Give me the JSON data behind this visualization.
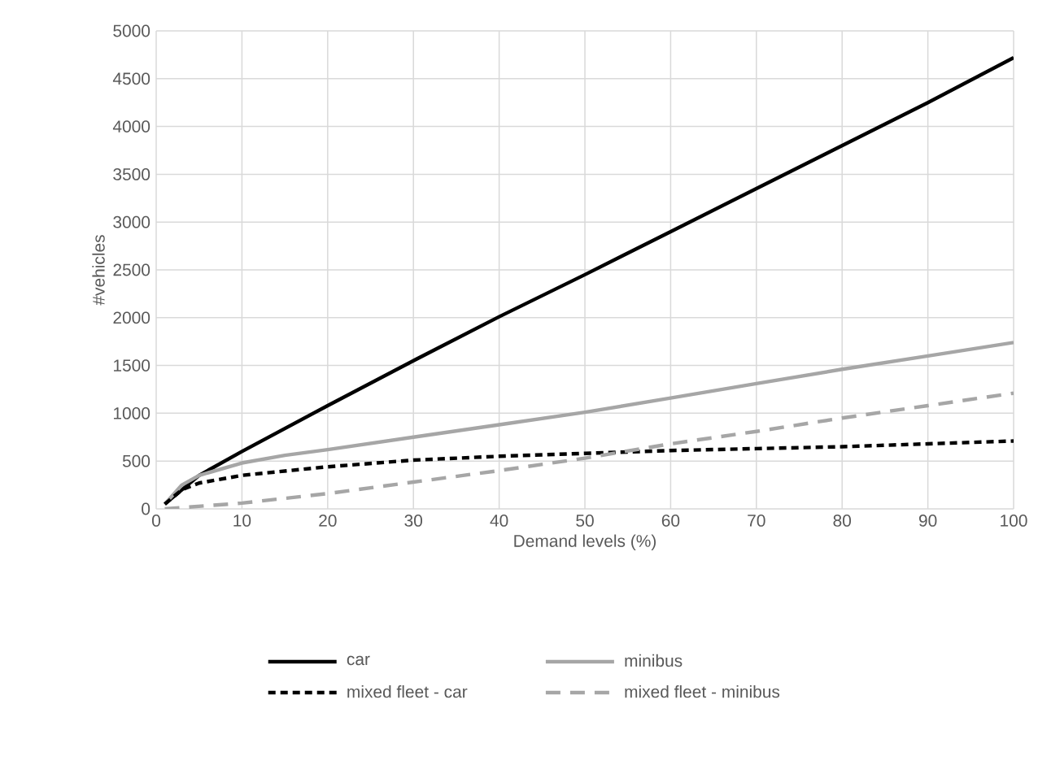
{
  "chart_data": {
    "type": "line",
    "xlabel": "Demand levels (%)",
    "ylabel": "#vehicles",
    "xlim": [
      0,
      100
    ],
    "xticks": [
      0,
      10,
      20,
      30,
      40,
      50,
      60,
      70,
      80,
      90,
      100
    ],
    "ylim": [
      0,
      5000
    ],
    "yticks": [
      0,
      500,
      1000,
      1500,
      2000,
      2500,
      3000,
      3500,
      4000,
      4500,
      5000
    ],
    "grid": true,
    "legend": "bottom",
    "marker": "none",
    "series": [
      {
        "name": "car",
        "color": "#000000",
        "line_style": "solid",
        "x": [
          1,
          5,
          10,
          20,
          30,
          40,
          50,
          60,
          70,
          80,
          90,
          100
        ],
        "values": [
          50,
          350,
          600,
          1080,
          1550,
          2010,
          2450,
          2900,
          3350,
          3800,
          4250,
          4720
        ]
      },
      {
        "name": "minibus",
        "color": "#a6a6a6",
        "line_style": "solid",
        "x": [
          1,
          3,
          5,
          10,
          15,
          20,
          30,
          40,
          50,
          60,
          70,
          80,
          90,
          100
        ],
        "values": [
          50,
          250,
          350,
          480,
          560,
          620,
          750,
          880,
          1010,
          1160,
          1310,
          1460,
          1600,
          1740
        ]
      },
      {
        "name": "mixed fleet - car",
        "color": "#000000",
        "line_style": "dotted",
        "x": [
          1,
          3,
          5,
          10,
          20,
          30,
          40,
          50,
          60,
          70,
          80,
          90,
          100
        ],
        "values": [
          50,
          200,
          270,
          350,
          440,
          510,
          550,
          580,
          610,
          630,
          650,
          680,
          710
        ]
      },
      {
        "name": "mixed fleet - minibus",
        "color": "#a6a6a6",
        "line_style": "dashed",
        "x": [
          1,
          10,
          20,
          30,
          40,
          50,
          60,
          70,
          80,
          90,
          100
        ],
        "values": [
          0,
          60,
          160,
          280,
          400,
          530,
          680,
          810,
          950,
          1080,
          1210
        ]
      }
    ]
  }
}
